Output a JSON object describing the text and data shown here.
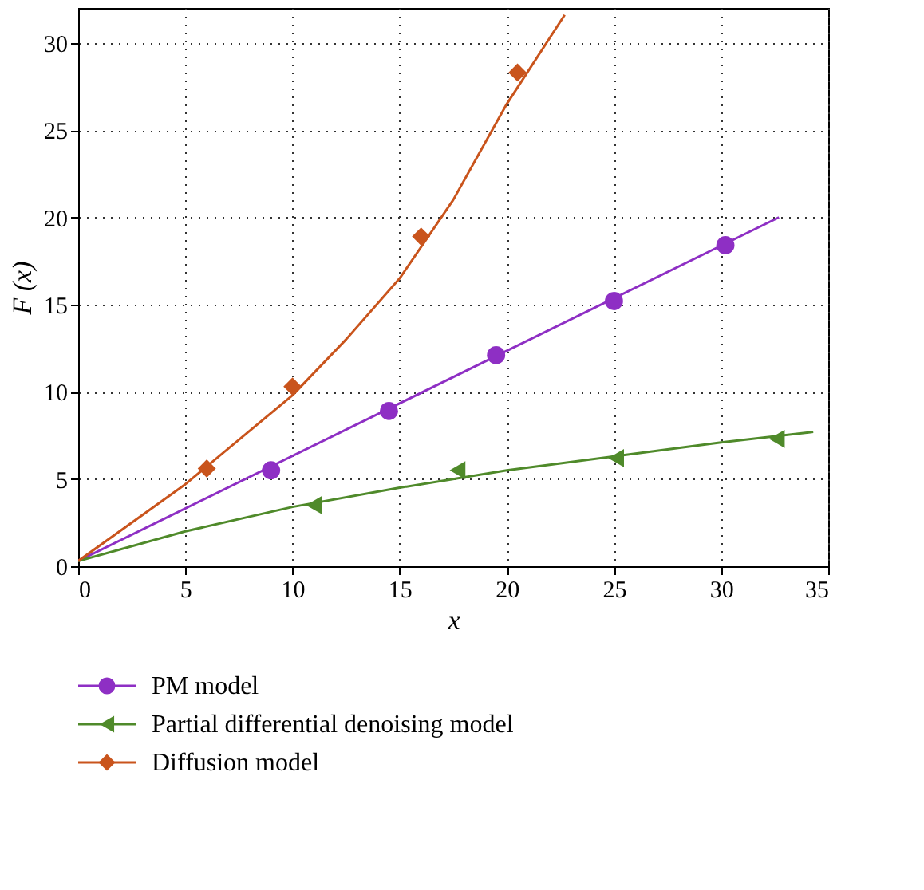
{
  "chart_data": {
    "type": "line",
    "xlabel": "x",
    "ylabel": "F (x)",
    "xlim": [
      0,
      35
    ],
    "ylim": [
      0,
      32
    ],
    "xticks": [
      0,
      5,
      10,
      15,
      20,
      25,
      30,
      35
    ],
    "yticks": [
      0,
      5,
      10,
      15,
      20,
      25,
      30
    ],
    "grid": true,
    "legend": "bottom",
    "series": [
      {
        "color": "#8e2fc4",
        "marker": "none",
        "x": [
          0,
          32.7
        ],
        "values": [
          0.3,
          20
        ]
      },
      {
        "color": "#4f8a2a",
        "marker": "none",
        "x": [
          0,
          5,
          10,
          15,
          20,
          25,
          30,
          34.3
        ],
        "values": [
          0.3,
          2.0,
          3.4,
          4.5,
          5.5,
          6.3,
          7.1,
          7.7
        ]
      },
      {
        "color": "#c9541c",
        "marker": "none",
        "x": [
          0,
          5,
          10,
          12.5,
          15,
          17.5,
          20,
          22.7
        ],
        "values": [
          0.3,
          4.7,
          9.8,
          13,
          16.5,
          21,
          26.5,
          31.6
        ]
      },
      {
        "type": "scatter",
        "name": "PM model",
        "color": "#8e2fc4",
        "marker": "circle",
        "x": [
          9,
          14.5,
          19.5,
          25,
          30.2
        ],
        "values": [
          5.5,
          8.9,
          12.1,
          15.2,
          18.4
        ]
      },
      {
        "type": "scatter",
        "name": "Partial differential denoising model",
        "color": "#4f8a2a",
        "marker": "triangle",
        "x": [
          11,
          17.7,
          25.1,
          32.6
        ],
        "values": [
          3.5,
          5.5,
          6.2,
          7.3
        ]
      },
      {
        "type": "scatter",
        "name": "Diffusion model",
        "color": "#c9541c",
        "marker": "diamond",
        "x": [
          6,
          10,
          16,
          20.5
        ],
        "values": [
          5.6,
          10.3,
          18.9,
          28.3
        ]
      }
    ]
  }
}
